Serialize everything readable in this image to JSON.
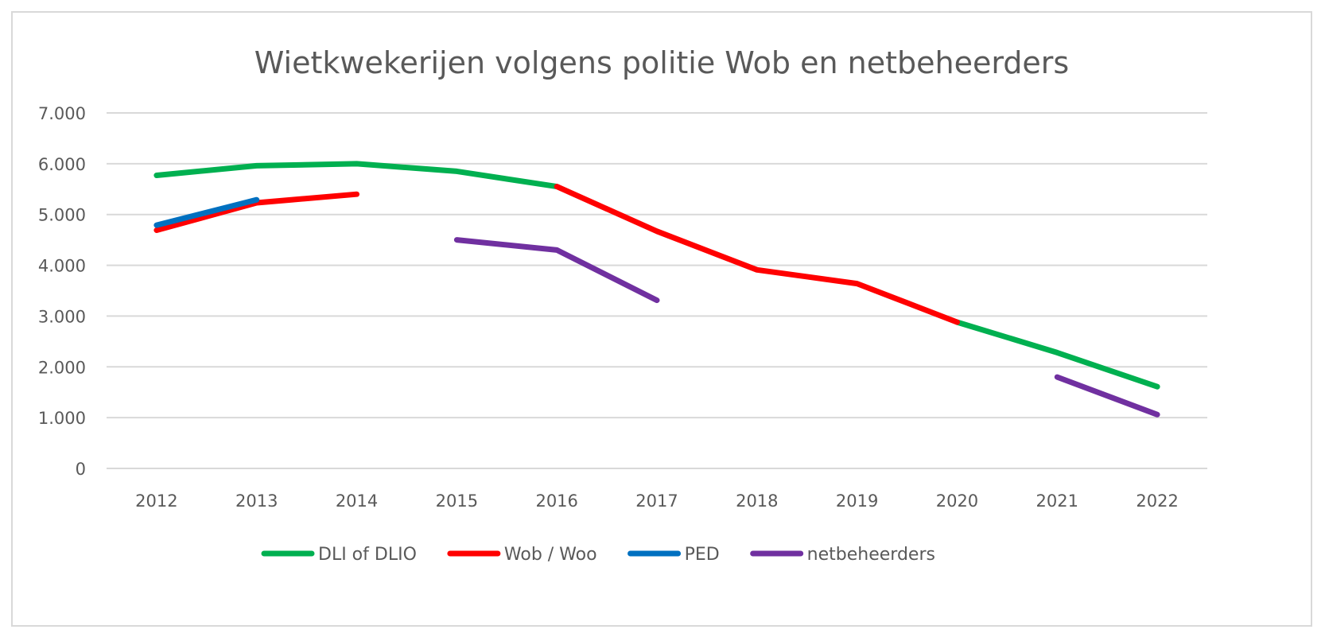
{
  "chart_data": {
    "type": "line",
    "title": "Wietkwekerijen volgens politie Wob en netbeheerders",
    "xlabel": "",
    "ylabel": "",
    "categories": [
      "2012",
      "2013",
      "2014",
      "2015",
      "2016",
      "2017",
      "2018",
      "2019",
      "2020",
      "2021",
      "2022"
    ],
    "ylim": [
      0,
      7000
    ],
    "yticks": [
      0,
      1000,
      2000,
      3000,
      4000,
      5000,
      6000,
      7000
    ],
    "ytick_labels": [
      "0",
      "1.000",
      "2.000",
      "3.000",
      "4.000",
      "5.000",
      "6.000",
      "7.000"
    ],
    "grid": true,
    "legend_position": "bottom",
    "series": [
      {
        "name": "DLI of DLIO",
        "color": "#00b050",
        "values": [
          5770,
          5960,
          6000,
          5850,
          5550,
          null,
          null,
          null,
          2880,
          2280,
          1610
        ]
      },
      {
        "name": "Wob / Woo",
        "color": "#ff0000",
        "values": [
          4690,
          5230,
          5400,
          null,
          5550,
          4670,
          3910,
          3640,
          2880,
          null,
          null
        ]
      },
      {
        "name": "PED",
        "color": "#0070c0",
        "values": [
          4790,
          5290,
          null,
          null,
          null,
          null,
          null,
          null,
          null,
          null,
          null
        ]
      },
      {
        "name": "netbeheerders",
        "color": "#7030a0",
        "values": [
          null,
          null,
          null,
          4500,
          4300,
          3310,
          null,
          null,
          null,
          1800,
          1060
        ]
      }
    ]
  }
}
